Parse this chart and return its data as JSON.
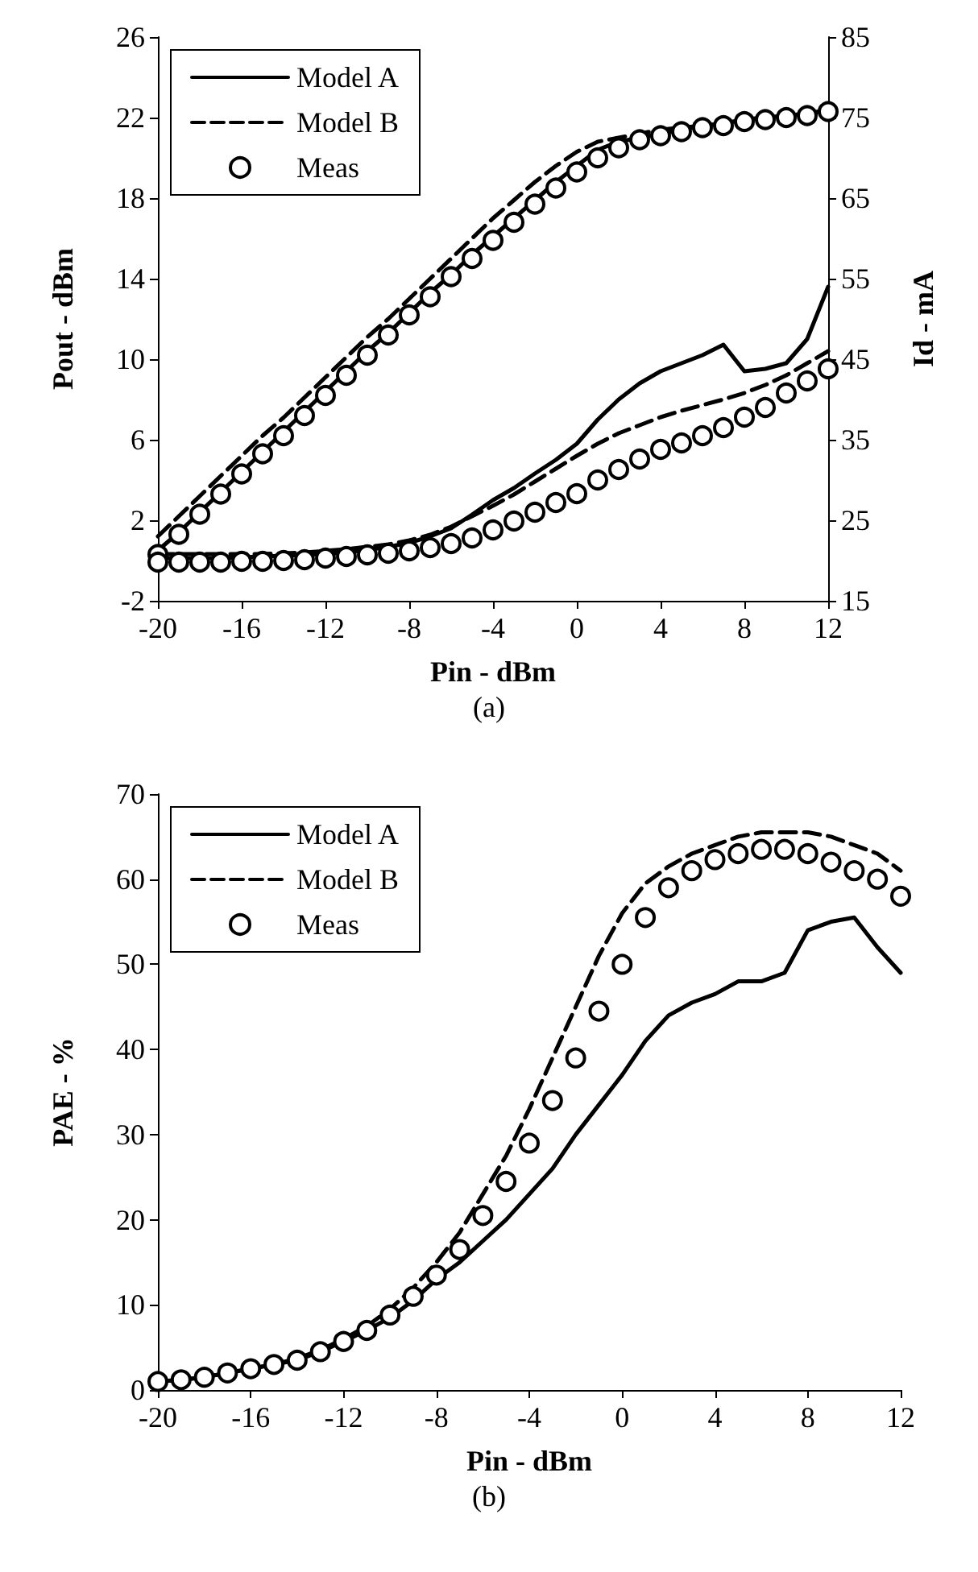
{
  "chart_data": [
    {
      "type": "line",
      "x": [
        -20,
        -19,
        -18,
        -17,
        -16,
        -15,
        -14,
        -13,
        -12,
        -11,
        -10,
        -9,
        -8,
        -7,
        -6,
        -5,
        -4,
        -3,
        -2,
        -1,
        0,
        1,
        2,
        3,
        4,
        5,
        6,
        7,
        8,
        9,
        10,
        11,
        12
      ],
      "xlabel": "Pin - dBm",
      "ylabel": "Pout - dBm",
      "y2label": "Id - mA",
      "annotations": [
        "(a)"
      ],
      "xlim": [
        -20,
        12
      ],
      "xticks": [
        -20,
        -16,
        -12,
        -8,
        -4,
        0,
        4,
        8,
        12
      ],
      "ylim": [
        -2,
        26
      ],
      "yticks": [
        -2,
        2,
        6,
        10,
        14,
        18,
        22,
        26
      ],
      "y2lim": [
        15,
        85
      ],
      "y2ticks": [
        15,
        25,
        35,
        45,
        55,
        65,
        75,
        85
      ],
      "grid": false,
      "legend": "top left",
      "series": [
        {
          "name": "Model A",
          "color": "#000000",
          "line_style": "solid",
          "marker": "none",
          "values": [
            0.5,
            1.4,
            2.4,
            3.4,
            4.4,
            5.4,
            6.4,
            7.4,
            8.4,
            9.4,
            10.4,
            11.3,
            12.3,
            13.3,
            14.2,
            15.2,
            16.1,
            17.0,
            17.9,
            18.8,
            19.6,
            20.4,
            20.8,
            21.0,
            21.2,
            21.4,
            21.6,
            21.7,
            21.9,
            22.0,
            22.1,
            22.2,
            22.4
          ]
        },
        {
          "name": "Model B",
          "color": "#000000",
          "line_style": "dashed",
          "marker": "none",
          "values": [
            1.2,
            2.2,
            3.2,
            4.2,
            5.2,
            6.2,
            7.1,
            8.1,
            9.1,
            10.1,
            11.1,
            12.0,
            13.0,
            14.0,
            15.0,
            16.0,
            17.0,
            17.9,
            18.8,
            19.6,
            20.3,
            20.8,
            21.0,
            21.2,
            21.4,
            21.5,
            21.6,
            21.7,
            21.9,
            22.0,
            22.1,
            22.2,
            22.3
          ]
        },
        {
          "name": "Meas",
          "type": "scatter",
          "color": "#000000",
          "marker": "circle",
          "values": [
            0.3,
            1.3,
            2.3,
            3.3,
            4.3,
            5.3,
            6.2,
            7.2,
            8.2,
            9.2,
            10.2,
            11.2,
            12.2,
            13.1,
            14.1,
            15.0,
            15.9,
            16.8,
            17.7,
            18.5,
            19.3,
            20.0,
            20.5,
            20.9,
            21.1,
            21.3,
            21.5,
            21.6,
            21.8,
            21.9,
            22.0,
            22.1,
            22.3
          ]
        },
        {
          "axis": "y2",
          "color": "#000000",
          "line_style": "solid",
          "marker": "none",
          "values": [
            20.3,
            20.3,
            20.3,
            20.3,
            20.4,
            20.5,
            20.6,
            20.7,
            20.8,
            21,
            21.3,
            21.7,
            22.2,
            23,
            24,
            25.7,
            27.5,
            29,
            30.8,
            32.5,
            34.5,
            37.5,
            40,
            42,
            43.5,
            44.5,
            45.5,
            46.8,
            43.5,
            43.8,
            44.5,
            47.5,
            54
          ]
        },
        {
          "axis": "y2",
          "color": "#000000",
          "line_style": "dashed",
          "marker": "none",
          "values": [
            20.8,
            20.8,
            20.8,
            20.8,
            20.8,
            20.8,
            20.9,
            21,
            21.2,
            21.4,
            21.7,
            22,
            22.5,
            23.2,
            24.2,
            25.5,
            26.8,
            28.2,
            29.8,
            31.4,
            33,
            34.5,
            35.8,
            36.8,
            37.8,
            38.6,
            39.3,
            40,
            40.8,
            41.8,
            43,
            44.5,
            46
          ]
        },
        {
          "type": "scatter",
          "axis": "y2",
          "color": "#000000",
          "marker": "circle",
          "values": [
            19.8,
            19.8,
            19.8,
            19.8,
            19.9,
            19.9,
            20,
            20.1,
            20.3,
            20.5,
            20.7,
            20.9,
            21.2,
            21.6,
            22.1,
            22.8,
            23.8,
            24.9,
            26,
            27.2,
            28.3,
            30,
            31.3,
            32.6,
            33.8,
            34.6,
            35.5,
            36.5,
            37.8,
            39,
            40.8,
            42.3,
            43.8
          ]
        }
      ]
    },
    {
      "type": "line",
      "x": [
        -20,
        -19,
        -18,
        -17,
        -16,
        -15,
        -14,
        -13,
        -12,
        -11,
        -10,
        -9,
        -8,
        -7,
        -6,
        -5,
        -4,
        -3,
        -2,
        -1,
        0,
        1,
        2,
        3,
        4,
        5,
        6,
        7,
        8,
        9,
        10,
        11,
        12
      ],
      "xlabel": "Pin - dBm",
      "ylabel": "PAE - %",
      "annotations": [
        "(b)"
      ],
      "xlim": [
        -20,
        12
      ],
      "xticks": [
        -20,
        -16,
        -12,
        -8,
        -4,
        0,
        4,
        8,
        12
      ],
      "ylim": [
        0,
        70
      ],
      "yticks": [
        0,
        10,
        20,
        30,
        40,
        50,
        60,
        70
      ],
      "grid": false,
      "legend": "top left",
      "series": [
        {
          "name": "Model A",
          "color": "#000000",
          "line_style": "solid",
          "marker": "none",
          "values": [
            1,
            1.2,
            1.5,
            2,
            2.5,
            3,
            3.5,
            4.5,
            5.7,
            7,
            8.5,
            10.5,
            13,
            15,
            17.5,
            20,
            23,
            26,
            30,
            33.5,
            37,
            41,
            44,
            45.5,
            46.5,
            48,
            48,
            49,
            54,
            55,
            55.5,
            52,
            49
          ]
        },
        {
          "name": "Model B",
          "color": "#000000",
          "line_style": "dashed",
          "marker": "none",
          "values": [
            1,
            1.2,
            1.5,
            2,
            2.5,
            3,
            3.7,
            4.7,
            6,
            7.5,
            9.5,
            12,
            15,
            18.5,
            23,
            27.5,
            33,
            39,
            45,
            51,
            56,
            59.5,
            61.5,
            63,
            64,
            65,
            65.5,
            65.5,
            65.5,
            65,
            64,
            63,
            61
          ]
        },
        {
          "name": "Meas",
          "type": "scatter",
          "color": "#000000",
          "marker": "circle",
          "values": [
            1,
            1.2,
            1.5,
            2,
            2.5,
            3,
            3.5,
            4.5,
            5.7,
            7,
            8.8,
            11,
            13.5,
            16.5,
            20.5,
            24.5,
            29,
            34,
            39,
            44.5,
            50,
            55.5,
            59,
            61,
            62.3,
            63,
            63.5,
            63.5,
            63,
            62,
            61,
            60,
            58
          ]
        }
      ]
    }
  ]
}
